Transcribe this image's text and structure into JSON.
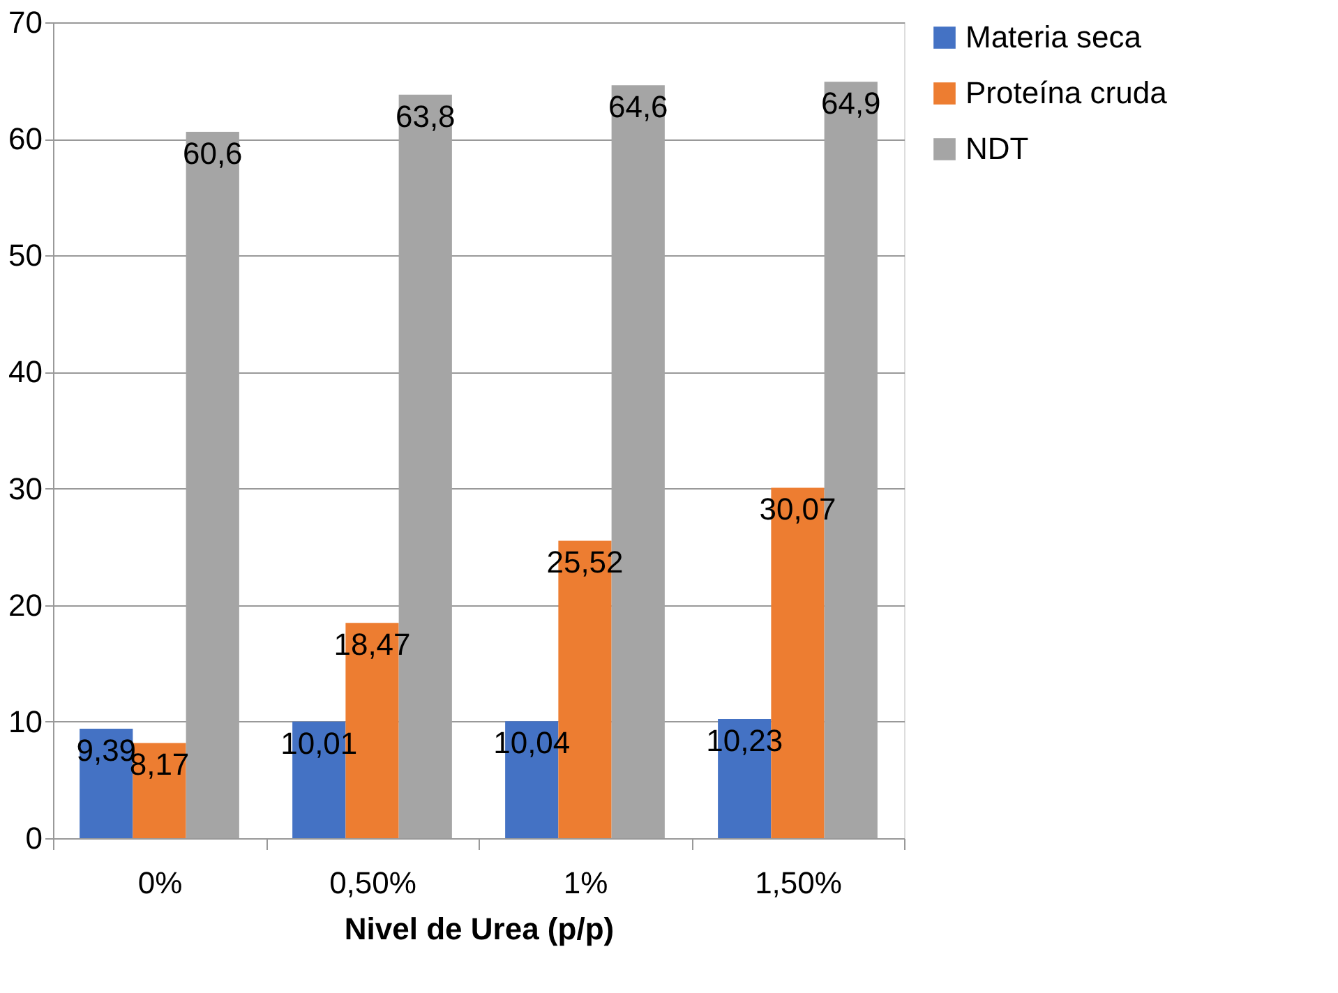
{
  "chart_data": {
    "type": "bar",
    "xlabel": "Nivel de Urea (p/p)",
    "categories": [
      "0%",
      "0,50%",
      "1%",
      "1,50%"
    ],
    "series": [
      {
        "name": "Materia seca",
        "color": "#4472c4",
        "values": [
          9.39,
          10.01,
          10.04,
          10.23
        ],
        "value_labels": [
          "9,39",
          "10,01",
          "10,04",
          "10,23"
        ]
      },
      {
        "name": "Proteína cruda",
        "color": "#ed7d31",
        "values": [
          8.17,
          18.47,
          25.52,
          30.07
        ],
        "value_labels": [
          "8,17",
          "18,47",
          "25,52",
          "30,07"
        ]
      },
      {
        "name": "NDT",
        "color": "#a5a5a5",
        "values": [
          60.6,
          63.8,
          64.6,
          64.9
        ],
        "value_labels": [
          "60,6",
          "63,8",
          "64,6",
          "64,9"
        ]
      }
    ],
    "ylim": [
      0,
      70
    ],
    "yticks": [
      0,
      10,
      20,
      30,
      40,
      50,
      60,
      70
    ],
    "grid": "y",
    "legend": "right"
  }
}
